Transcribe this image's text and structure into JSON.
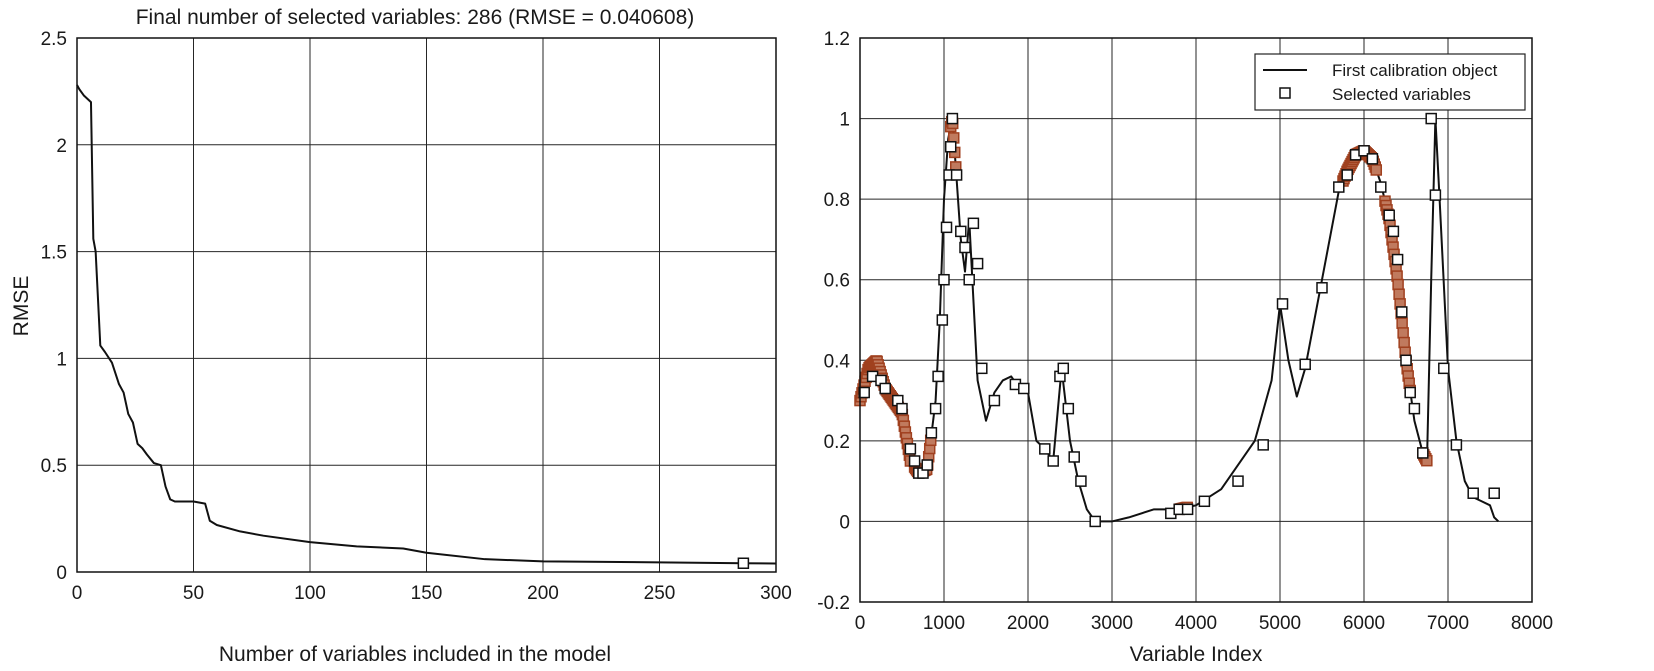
{
  "chart_data": [
    {
      "type": "line",
      "title": "Final number of selected variables: 286  (RMSE = 0.040608)",
      "xlabel": "Number of variables included in the model",
      "ylabel": "RMSE",
      "xlim": [
        0,
        300
      ],
      "ylim": [
        0,
        2.5
      ],
      "xticks": [
        "0",
        "50",
        "100",
        "150",
        "200",
        "250",
        "300"
      ],
      "yticks": [
        "0",
        "0.5",
        "1",
        "1.5",
        "2",
        "2.5"
      ],
      "grid": true,
      "series": [
        {
          "x": [
            0,
            1,
            3,
            6,
            7,
            8,
            10,
            12,
            15,
            18,
            20,
            22,
            24,
            26,
            28,
            30,
            33,
            36,
            38,
            40,
            42,
            45,
            50,
            55,
            57,
            60,
            70,
            80,
            100,
            120,
            140,
            150,
            175,
            200,
            250,
            286,
            300
          ],
          "y": [
            2.28,
            2.26,
            2.23,
            2.2,
            1.56,
            1.5,
            1.06,
            1.03,
            0.98,
            0.88,
            0.84,
            0.74,
            0.7,
            0.6,
            0.58,
            0.55,
            0.51,
            0.5,
            0.4,
            0.34,
            0.33,
            0.33,
            0.33,
            0.32,
            0.24,
            0.22,
            0.19,
            0.17,
            0.14,
            0.12,
            0.11,
            0.09,
            0.06,
            0.05,
            0.045,
            0.041,
            0.04
          ]
        }
      ],
      "markers": [
        {
          "x": 286,
          "y": 0.041
        }
      ]
    },
    {
      "type": "line",
      "xlabel": "Variable Index",
      "ylabel": "",
      "xlim": [
        0,
        8000
      ],
      "ylim": [
        -0.2,
        1.2
      ],
      "xticks": [
        "0",
        "1000",
        "2000",
        "3000",
        "4000",
        "5000",
        "6000",
        "7000",
        "8000"
      ],
      "yticks": [
        "-0.2",
        "0",
        "0.2",
        "0.4",
        "0.6",
        "0.8",
        "1",
        "1.2"
      ],
      "grid": true,
      "legend": "top-right",
      "legend_entries": [
        "First calibration object",
        "Selected variables"
      ],
      "colors": {
        "selected_dense": "#a0401f",
        "line": "#111111"
      },
      "series": [
        {
          "name": "First calibration object",
          "x": [
            0,
            100,
            200,
            300,
            400,
            500,
            600,
            700,
            800,
            900,
            950,
            1000,
            1050,
            1100,
            1150,
            1200,
            1250,
            1300,
            1350,
            1400,
            1450,
            1500,
            1600,
            1700,
            1800,
            1900,
            2000,
            2100,
            2200,
            2300,
            2400,
            2500,
            2600,
            2700,
            2800,
            3000,
            3200,
            3500,
            3800,
            4000,
            4300,
            4700,
            4900,
            5000,
            5100,
            5200,
            5300,
            5500,
            5700,
            5800,
            5900,
            6000,
            6100,
            6200,
            6300,
            6400,
            6500,
            6600,
            6700,
            6750,
            6800,
            6850,
            6900,
            7000,
            7100,
            7200,
            7300,
            7400,
            7500,
            7550,
            7600
          ],
          "y": [
            0.3,
            0.38,
            0.4,
            0.33,
            0.3,
            0.27,
            0.15,
            0.12,
            0.13,
            0.3,
            0.5,
            0.8,
            0.95,
            1.0,
            0.85,
            0.7,
            0.62,
            0.75,
            0.55,
            0.35,
            0.3,
            0.25,
            0.32,
            0.35,
            0.36,
            0.33,
            0.32,
            0.2,
            0.18,
            0.15,
            0.38,
            0.2,
            0.1,
            0.03,
            0.0,
            0.0,
            0.01,
            0.03,
            0.03,
            0.04,
            0.08,
            0.2,
            0.35,
            0.54,
            0.4,
            0.31,
            0.38,
            0.6,
            0.82,
            0.87,
            0.91,
            0.92,
            0.9,
            0.84,
            0.75,
            0.6,
            0.4,
            0.25,
            0.17,
            0.15,
            0.6,
            1.0,
            0.8,
            0.38,
            0.2,
            0.1,
            0.06,
            0.05,
            0.04,
            0.01,
            0.0
          ]
        },
        {
          "name": "Selected variables",
          "points": [
            [
              50,
              0.32
            ],
            [
              150,
              0.36
            ],
            [
              250,
              0.35
            ],
            [
              300,
              0.33
            ],
            [
              450,
              0.3
            ],
            [
              500,
              0.28
            ],
            [
              600,
              0.18
            ],
            [
              650,
              0.15
            ],
            [
              700,
              0.12
            ],
            [
              750,
              0.12
            ],
            [
              800,
              0.14
            ],
            [
              850,
              0.22
            ],
            [
              900,
              0.28
            ],
            [
              930,
              0.36
            ],
            [
              980,
              0.5
            ],
            [
              1000,
              0.6
            ],
            [
              1030,
              0.73
            ],
            [
              1060,
              0.86
            ],
            [
              1080,
              0.93
            ],
            [
              1100,
              1.0
            ],
            [
              1150,
              0.86
            ],
            [
              1200,
              0.72
            ],
            [
              1250,
              0.68
            ],
            [
              1300,
              0.6
            ],
            [
              1350,
              0.74
            ],
            [
              1400,
              0.64
            ],
            [
              1450,
              0.38
            ],
            [
              1600,
              0.3
            ],
            [
              1850,
              0.34
            ],
            [
              1950,
              0.33
            ],
            [
              2200,
              0.18
            ],
            [
              2300,
              0.15
            ],
            [
              2380,
              0.36
            ],
            [
              2420,
              0.38
            ],
            [
              2480,
              0.28
            ],
            [
              2550,
              0.16
            ],
            [
              2630,
              0.1
            ],
            [
              2800,
              0.0
            ],
            [
              3700,
              0.02
            ],
            [
              3800,
              0.03
            ],
            [
              3900,
              0.03
            ],
            [
              4100,
              0.05
            ],
            [
              4500,
              0.1
            ],
            [
              4800,
              0.19
            ],
            [
              5030,
              0.54
            ],
            [
              5300,
              0.39
            ],
            [
              5500,
              0.58
            ],
            [
              5700,
              0.83
            ],
            [
              5800,
              0.86
            ],
            [
              5900,
              0.91
            ],
            [
              6000,
              0.92
            ],
            [
              6100,
              0.9
            ],
            [
              6200,
              0.83
            ],
            [
              6300,
              0.76
            ],
            [
              6350,
              0.72
            ],
            [
              6400,
              0.65
            ],
            [
              6450,
              0.52
            ],
            [
              6500,
              0.4
            ],
            [
              6550,
              0.32
            ],
            [
              6600,
              0.28
            ],
            [
              6700,
              0.17
            ],
            [
              6800,
              1.0
            ],
            [
              6850,
              0.81
            ],
            [
              6950,
              0.38
            ],
            [
              7100,
              0.19
            ],
            [
              7300,
              0.07
            ],
            [
              7550,
              0.07
            ]
          ],
          "dense_ranges": [
            [
              0,
              600
            ],
            [
              650,
              850
            ],
            [
              1080,
              1150
            ],
            [
              3800,
              3900
            ],
            [
              5750,
              6150
            ],
            [
              6250,
              6550
            ],
            [
              6700,
              6750
            ]
          ]
        }
      ]
    }
  ]
}
